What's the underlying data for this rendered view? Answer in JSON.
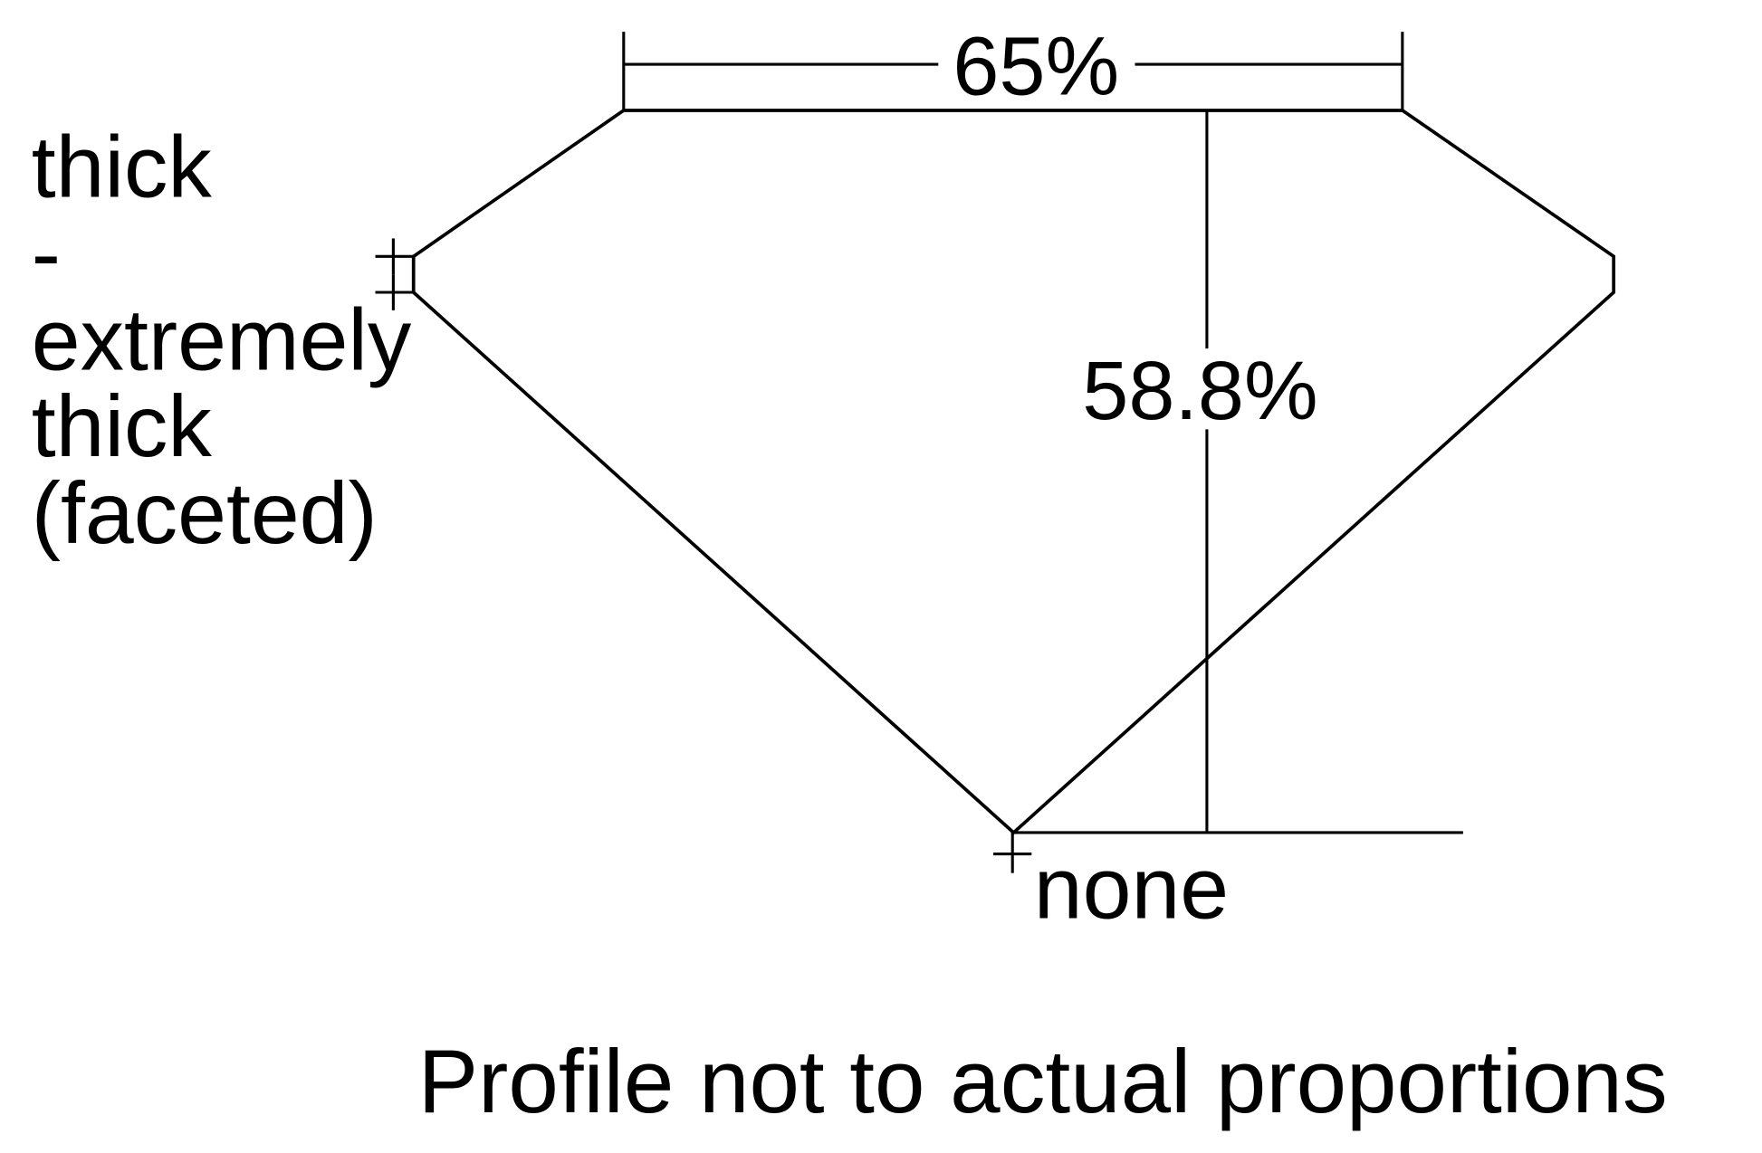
{
  "diagram": {
    "table_percent": "65%",
    "depth_percent": "58.8%",
    "girdle_label": [
      "thick",
      "-",
      "extremely",
      "thick",
      "(faceted)"
    ],
    "culet_label": "none",
    "footnote": "Profile not to actual proportions",
    "line_color": "#000000",
    "background": "#ffffff"
  }
}
